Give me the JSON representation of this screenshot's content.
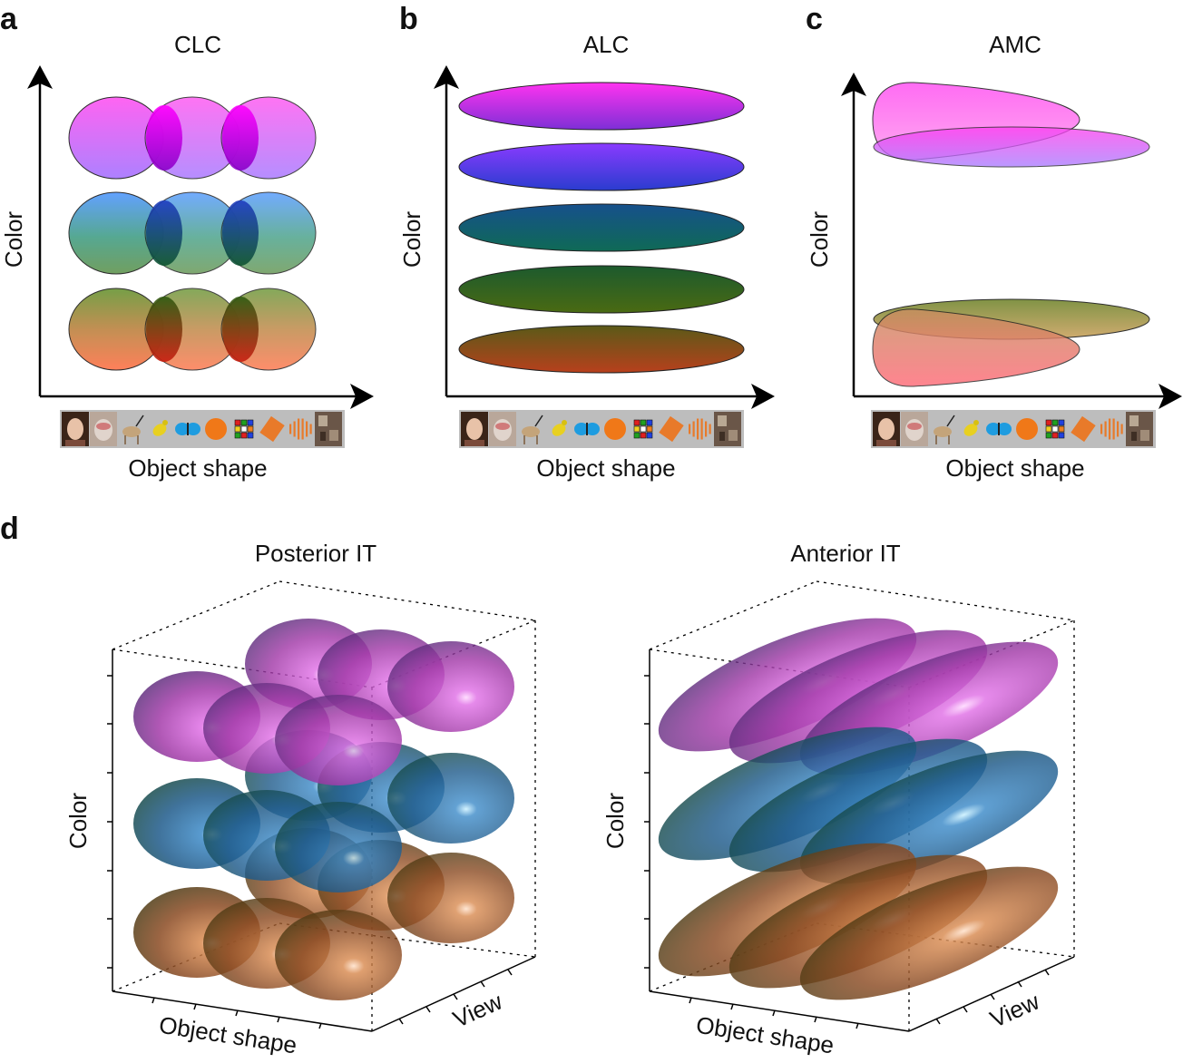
{
  "panels": [
    {
      "id": "a",
      "label": "a",
      "title": "CLC",
      "y_label": "Color",
      "x_label": "Object shape"
    },
    {
      "id": "b",
      "label": "b",
      "title": "ALC",
      "y_label": "Color",
      "x_label": "Object shape"
    },
    {
      "id": "c",
      "label": "c",
      "title": "AMC",
      "y_label": "Color",
      "x_label": "Object shape"
    }
  ],
  "panel_d": {
    "label": "d",
    "subpanels": [
      {
        "title": "Posterior IT",
        "y_label": "Color",
        "x_label": "Object shape",
        "z_label": "View"
      },
      {
        "title": "Anterior IT",
        "y_label": "Color",
        "x_label": "Object shape",
        "z_label": "View"
      }
    ]
  },
  "strip_icons": [
    "face-icon",
    "monkey-face-icon",
    "antelope-icon",
    "bird-icon",
    "butterfly-icon",
    "orange-icon",
    "rubiks-cube-icon",
    "rectangle-icon",
    "stripes-icon",
    "texture-icon"
  ],
  "colors": {
    "magenta_top": "#ff5cf0",
    "magenta_bottom": "#b07cff",
    "blue_top": "#5aa0ff",
    "green_mid": "#4f9a6c",
    "olive_top": "#6e9a40",
    "orange_bottom": "#ff7a50",
    "purple_dark": "#c400c8",
    "teal_dark": "#0f5f58",
    "brown_dark": "#a13a12"
  }
}
